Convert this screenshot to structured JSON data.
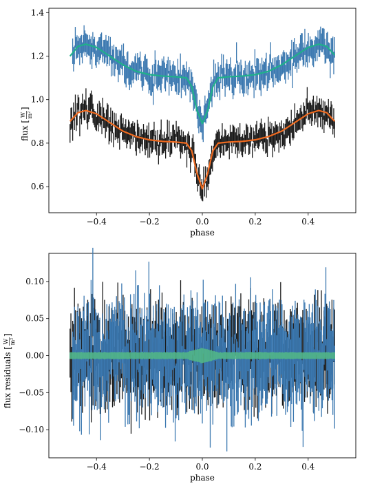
{
  "chart_data": [
    {
      "type": "line",
      "xlabel": "phase",
      "ylabel": {
        "prefix": "flux [",
        "unit_num": "W",
        "unit_den": "m²",
        "suffix": "]"
      },
      "xlim": [
        -0.58,
        0.58
      ],
      "ylim": [
        0.48,
        1.42
      ],
      "xticks": [
        -0.4,
        -0.2,
        0.0,
        0.2,
        0.4
      ],
      "xtick_labels": [
        "−0.4",
        "−0.2",
        "0.0",
        "0.2",
        "0.4"
      ],
      "yticks": [
        0.6,
        0.8,
        1.0,
        1.2,
        1.4
      ],
      "ytick_labels": [
        "0.6",
        "0.8",
        "1.0",
        "1.2",
        "1.4"
      ],
      "grid": false,
      "series": [
        {
          "role": "observations-upper",
          "color": "#3b78b0",
          "kind": "errorbar",
          "x_range": [
            -0.49,
            0.5
          ],
          "model_offset": 0.3,
          "scatter": 0.045
        },
        {
          "role": "model-upper",
          "color": "#1fb18a",
          "kind": "line",
          "x": [
            -0.5,
            -0.47,
            -0.44,
            -0.4,
            -0.35,
            -0.3,
            -0.25,
            -0.2,
            -0.15,
            -0.1,
            -0.06,
            -0.04,
            -0.02,
            0.0,
            0.02,
            0.04,
            0.06,
            0.1,
            0.15,
            0.2,
            0.25,
            0.3,
            0.35,
            0.4,
            0.44,
            0.47,
            0.5
          ],
          "y": [
            1.2,
            1.245,
            1.255,
            1.24,
            1.2,
            1.16,
            1.13,
            1.115,
            1.108,
            1.105,
            1.1,
            1.06,
            0.95,
            0.89,
            0.95,
            1.06,
            1.1,
            1.105,
            1.108,
            1.115,
            1.13,
            1.16,
            1.2,
            1.24,
            1.255,
            1.245,
            1.205
          ]
        },
        {
          "role": "observations-lower",
          "color": "#1a1a1a",
          "kind": "errorbar",
          "x_range": [
            -0.5,
            0.5
          ],
          "model_offset": 0.0,
          "scatter": 0.04
        },
        {
          "role": "model-lower",
          "color": "#f06a1f",
          "kind": "line",
          "x": [
            -0.5,
            -0.47,
            -0.44,
            -0.4,
            -0.35,
            -0.3,
            -0.25,
            -0.2,
            -0.15,
            -0.1,
            -0.06,
            -0.04,
            -0.02,
            0.0,
            0.02,
            0.04,
            0.06,
            0.1,
            0.15,
            0.2,
            0.25,
            0.3,
            0.35,
            0.4,
            0.44,
            0.47,
            0.5
          ],
          "y": [
            0.9,
            0.94,
            0.95,
            0.935,
            0.895,
            0.855,
            0.83,
            0.815,
            0.808,
            0.805,
            0.8,
            0.765,
            0.66,
            0.59,
            0.66,
            0.765,
            0.8,
            0.805,
            0.808,
            0.815,
            0.83,
            0.855,
            0.895,
            0.935,
            0.95,
            0.94,
            0.9
          ]
        }
      ]
    },
    {
      "type": "line",
      "xlabel": "phase",
      "ylabel": {
        "prefix": "flux residuals [",
        "unit_num": "W",
        "unit_den": "m²",
        "suffix": "]"
      },
      "xlim": [
        -0.58,
        0.58
      ],
      "ylim": [
        -0.138,
        0.138
      ],
      "xticks": [
        -0.4,
        -0.2,
        0.0,
        0.2,
        0.4
      ],
      "xtick_labels": [
        "−0.4",
        "−0.2",
        "0.0",
        "0.2",
        "0.4"
      ],
      "yticks": [
        -0.1,
        -0.05,
        0.0,
        0.05,
        0.1
      ],
      "ytick_labels": [
        "−0.10",
        "−0.05",
        "0.00",
        "0.05",
        "0.10"
      ],
      "grid": false,
      "series": [
        {
          "role": "residuals-lower",
          "color": "#1a1a1a",
          "kind": "errorbar",
          "x_range": [
            -0.5,
            0.5
          ],
          "scatter": 0.04
        },
        {
          "role": "residuals-upper",
          "color": "#3b78b0",
          "kind": "errorbar",
          "x_range": [
            -0.49,
            0.5
          ],
          "scatter": 0.045
        },
        {
          "role": "zero-line",
          "color": "#52b788",
          "kind": "band",
          "x_range": [
            -0.5,
            0.5
          ],
          "y": 0.0
        }
      ]
    }
  ]
}
